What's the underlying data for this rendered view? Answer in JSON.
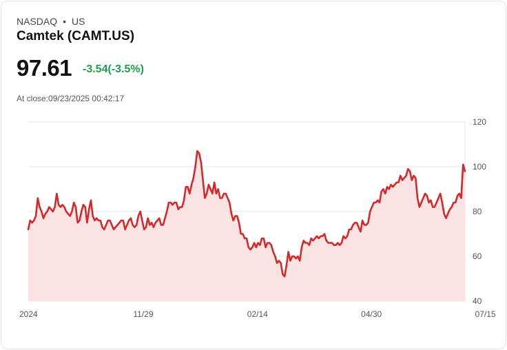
{
  "header": {
    "exchange": "NASDAQ",
    "separator": "•",
    "region": "US",
    "title": "Camtek (CAMT.US)",
    "price": "97.61",
    "change": "-3.54(-3.5%)",
    "close_label": "At close:09/23/2025 00:42:17"
  },
  "colors": {
    "line": "#d62828",
    "fill": "#fbe3e3",
    "change": "#1e9e4a",
    "grid": "#e6e6e6"
  },
  "chart_data": {
    "type": "area",
    "title": "",
    "xlabel": "",
    "ylabel": "",
    "ylim": [
      40,
      120
    ],
    "y_ticks": [
      40,
      60,
      80,
      100,
      120
    ],
    "x_ticks": [
      {
        "label": "2024",
        "index": 0
      },
      {
        "label": "11/29",
        "index": 60
      },
      {
        "label": "02/14",
        "index": 120
      },
      {
        "label": "04/30",
        "index": 180
      },
      {
        "label": "07/15",
        "index": 240
      }
    ],
    "grid": true,
    "series": [
      {
        "name": "CAMT.US",
        "values": [
          72,
          76,
          75,
          76,
          78,
          86,
          82,
          80,
          77,
          79,
          80,
          82,
          81,
          80,
          82,
          88,
          83,
          82,
          83,
          82,
          80,
          79,
          78,
          80,
          84,
          82,
          75,
          76,
          80,
          83,
          82,
          75,
          81,
          85,
          78,
          76,
          77,
          76,
          76,
          73,
          72,
          74,
          76,
          76,
          74,
          72,
          73,
          74,
          75,
          76,
          76,
          72,
          74,
          76,
          77,
          74,
          73,
          74,
          78,
          80,
          76,
          72,
          73,
          77,
          74,
          75,
          73,
          75,
          76,
          77,
          74,
          74,
          77,
          80,
          84,
          84,
          83,
          84,
          84,
          81,
          82,
          82,
          85,
          91,
          91,
          88,
          92,
          95,
          100,
          107,
          106,
          102,
          94,
          86,
          88,
          92,
          90,
          88,
          93,
          88,
          90,
          86,
          86,
          88,
          88,
          86,
          84,
          79,
          76,
          78,
          78,
          75,
          70,
          70,
          68,
          68,
          64,
          63,
          64,
          66,
          64,
          66,
          65,
          68,
          68,
          64,
          66,
          66,
          65,
          62,
          60,
          57,
          58,
          57,
          52,
          51,
          56,
          62,
          58,
          60,
          60,
          59,
          60,
          58,
          64,
          67,
          66,
          66,
          65,
          68,
          67,
          68,
          69,
          68,
          69,
          69,
          70,
          67,
          66,
          66,
          66,
          65,
          65,
          66,
          65,
          66,
          69,
          68,
          69,
          72,
          72,
          74,
          75,
          75,
          73,
          71,
          76,
          74,
          74,
          75,
          80,
          82,
          84,
          84,
          85,
          84,
          89,
          90,
          88,
          91,
          90,
          92,
          91,
          92,
          93,
          93,
          96,
          94,
          95,
          96,
          99,
          98,
          94,
          96,
          95,
          86,
          82,
          84,
          86,
          88,
          87,
          84,
          85,
          82,
          82,
          84,
          86,
          88,
          84,
          79,
          77,
          79,
          81,
          82,
          84,
          84,
          87,
          88,
          86,
          101,
          98
        ]
      }
    ]
  }
}
